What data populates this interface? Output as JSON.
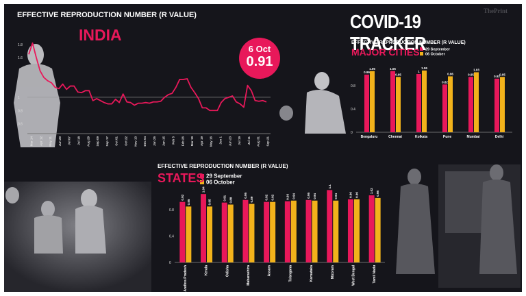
{
  "header": {
    "title": "COVID-19 TRACKER",
    "brand": "ThePrint"
  },
  "india": {
    "subtitle": "EFFECTIVE REPRODUCTION NUMBER (R VALUE)",
    "title": "INDIA",
    "badge_date": "6 Oct",
    "badge_value": "0.91"
  },
  "cities": {
    "subtitle": "EFFECTIVE REPRODUCTION NUMBER (R VALUE)",
    "title": "MAJOR CITIES"
  },
  "states": {
    "subtitle": "EFFECTIVE REPRODUCTION NUMBER (R VALUE)",
    "title": "STATES"
  },
  "colors": {
    "pink": "#e8185a",
    "yellow": "#f2b21b",
    "background": "#15151b"
  },
  "chart_data": [
    {
      "type": "line",
      "title": "INDIA",
      "ylim": [
        0.45,
        1.85
      ],
      "yticks": [
        "1.8",
        "1.6",
        "1",
        "0.8",
        "0.6"
      ],
      "ytick_values": [
        1.8,
        1.6,
        1.0,
        0.8,
        0.6
      ],
      "reference_line": 1.0,
      "x_tick_labels": [
        "Mar 14",
        "Apr 12",
        "May 11",
        "Jun 20",
        "Jul 07",
        "Jul 18",
        "Aug 29",
        "Sep 09",
        "Sep 17",
        "Oct 01",
        "Oct 22",
        "Nov 13",
        "Dec 04",
        "Jan 25",
        "Jan 15",
        "Feb 5",
        "Feb 26",
        "Mar 19",
        "Apr 19",
        "May 16",
        "Jun 1",
        "Jun 23",
        "Jul 19",
        "Jul 11",
        "Aug 31",
        "Sep 21"
      ],
      "values": [
        1.65,
        1.82,
        1.6,
        1.4,
        1.3,
        1.25,
        1.22,
        1.15,
        1.13,
        1.2,
        1.12,
        1.17,
        1.17,
        1.08,
        1.07,
        1.1,
        1.1,
        0.95,
        0.98,
        0.95,
        0.92,
        0.9,
        0.9,
        0.97,
        0.92,
        1.05,
        0.93,
        0.92,
        0.88,
        0.91,
        0.91,
        0.92,
        0.91,
        0.93,
        0.93,
        0.94,
        1.0,
        1.04,
        1.06,
        1.15,
        1.27,
        1.27,
        1.28,
        1.15,
        1.07,
        0.98,
        0.84,
        0.84,
        0.8,
        0.8,
        0.8,
        0.92,
        0.98,
        1.0,
        1.02,
        0.93,
        0.9,
        0.85,
        1.18,
        1.1,
        0.95,
        0.94,
        0.95,
        0.93
      ]
    },
    {
      "type": "bar",
      "title": "MAJOR CITIES",
      "categories": [
        "Bengaluru",
        "Chennai",
        "Kolkata",
        "Pune",
        "Mumbai",
        "Delhi"
      ],
      "series": [
        {
          "name": "29 September",
          "values": [
            0.99,
            1.05,
            1,
            0.82,
            0.95,
            0.92
          ],
          "labels": [
            "0.99",
            "1.05",
            "1",
            "0.82",
            "0.95",
            "0.92"
          ]
        },
        {
          "name": "06 October",
          "values": [
            1.05,
            0.95,
            1.06,
            0.96,
            1.03,
            0.95
          ],
          "labels": [
            "1.05",
            "0.95",
            "1.06",
            "0.96",
            "1.03",
            "0.95"
          ]
        }
      ],
      "yticks": [
        "0",
        "0.4",
        "0.8"
      ],
      "ytick_values": [
        0,
        0.4,
        0.8
      ],
      "ylim": [
        0,
        1.1
      ],
      "legend": "top-right"
    },
    {
      "type": "bar",
      "title": "STATES",
      "categories": [
        "Andhra Pradesh",
        "Kerala",
        "Odisha",
        "Maharashtra",
        "Assam",
        "Telangana",
        "Karnataka",
        "Mizoram",
        "West Bengal",
        "Tamil Nadu"
      ],
      "series": [
        {
          "name": "29 September",
          "values": [
            0.92,
            1.04,
            0.91,
            0.95,
            0.92,
            0.93,
            0.95,
            1.1,
            0.96,
            1.02
          ],
          "labels": [
            "0.92",
            "1.04",
            "0.91",
            "0.95",
            "0.92",
            "0.93",
            "0.95",
            "1.1",
            "0.96",
            "1.02"
          ]
        },
        {
          "name": "06 October",
          "values": [
            0.85,
            0.85,
            0.88,
            0.89,
            0.92,
            0.94,
            0.94,
            0.94,
            0.96,
            0.98
          ],
          "labels": [
            "0.85",
            "0.85",
            "0.88",
            "0.89",
            "0.92",
            "0.94",
            "0.94",
            "0.94",
            "0.96",
            "0.98"
          ]
        }
      ],
      "yticks": [
        "0",
        "0.4",
        "0.8"
      ],
      "ytick_values": [
        0,
        0.4,
        0.8
      ],
      "ylim": [
        0,
        1.15
      ],
      "legend": "top-left"
    }
  ]
}
